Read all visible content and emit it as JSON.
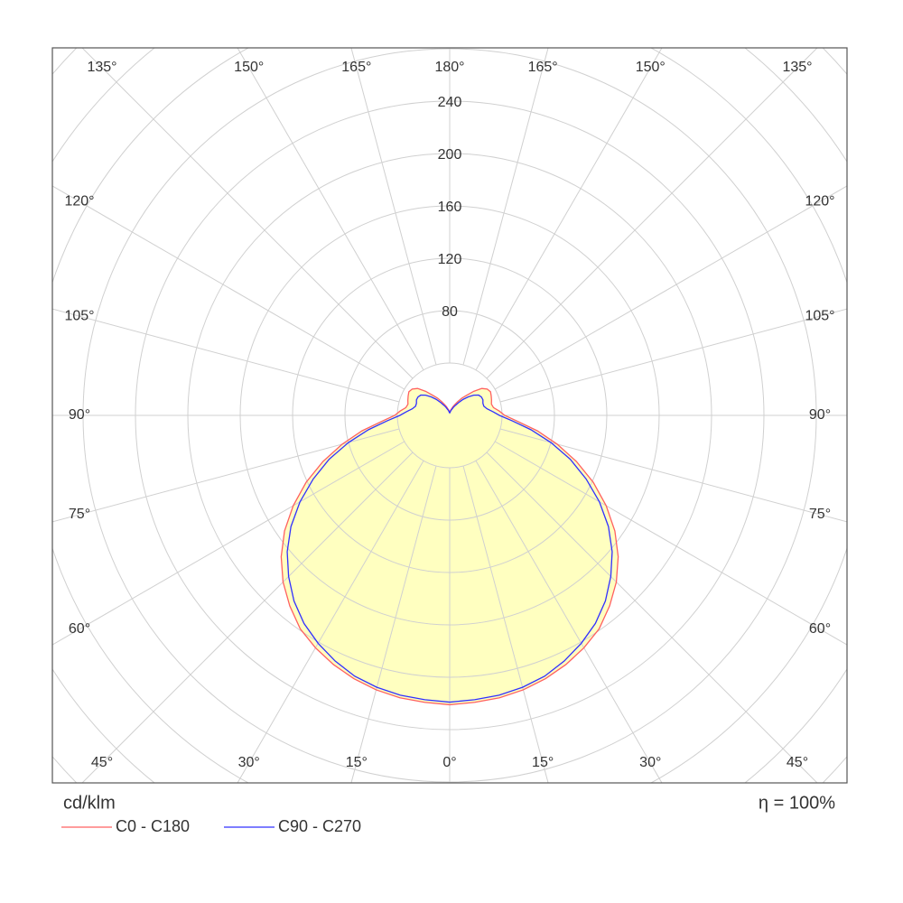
{
  "chart_data": {
    "type": "polar",
    "unit_label": "cd/klm",
    "efficiency_label": "η = 100%",
    "angles": [
      0,
      5,
      10,
      15,
      20,
      25,
      30,
      35,
      40,
      45,
      50,
      55,
      60,
      65,
      70,
      75,
      80,
      85,
      90,
      95,
      100,
      105,
      110,
      115,
      120,
      125,
      130,
      135,
      140,
      145,
      150,
      155,
      160,
      165,
      170,
      175,
      180
    ],
    "series": [
      {
        "name": "C0 - C180",
        "color": "#ff6060",
        "values": [
          221,
          220,
          219,
          217,
          214,
          210,
          205,
          199,
          190,
          180,
          168,
          154,
          138,
          121,
          103,
          85,
          68,
          52,
          42,
          38,
          34,
          33,
          34,
          35,
          36,
          35,
          32,
          26,
          20,
          16,
          12,
          9,
          7,
          5,
          4,
          3,
          3
        ]
      },
      {
        "name": "C90 - C270",
        "color": "#3030ff",
        "values": [
          219,
          218,
          217,
          215,
          212,
          207,
          201,
          194,
          185,
          174,
          162,
          148,
          132,
          115,
          98,
          80,
          63,
          48,
          38,
          33,
          29,
          27,
          27,
          28,
          28,
          27,
          24,
          20,
          16,
          12,
          9,
          7,
          5,
          4,
          3,
          2,
          2
        ]
      }
    ],
    "fill_color": "#ffffc0",
    "rlim": [
      0,
      400
    ],
    "rticks": [
      80,
      120,
      160,
      200,
      240
    ],
    "rgrid": [
      40,
      80,
      120,
      160,
      200,
      240,
      280,
      320,
      360,
      400
    ],
    "angle_ticks": [
      {
        "value": 0,
        "label": "0°"
      },
      {
        "value": 15,
        "label": "15°"
      },
      {
        "value": 30,
        "label": "30°"
      },
      {
        "value": 45,
        "label": "45°"
      },
      {
        "value": 60,
        "label": "60°"
      },
      {
        "value": 75,
        "label": "75°"
      },
      {
        "value": 90,
        "label": "90°"
      },
      {
        "value": 105,
        "label": "105°"
      },
      {
        "value": 120,
        "label": "120°"
      },
      {
        "value": 135,
        "label": "135°"
      },
      {
        "value": 150,
        "label": "150°"
      },
      {
        "value": 165,
        "label": "165°"
      },
      {
        "value": 180,
        "label": "180°"
      }
    ],
    "grid": true
  }
}
